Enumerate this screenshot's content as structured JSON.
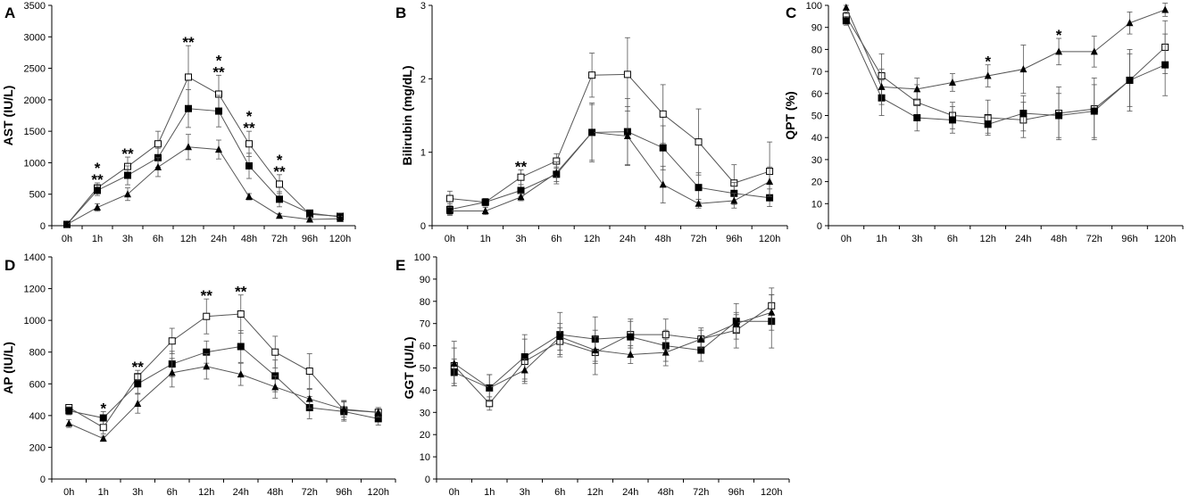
{
  "chart_data": [
    {
      "panel": "A",
      "type": "line",
      "ylabel": "AST (IU/L)",
      "xlabel": "",
      "categories": [
        "0h",
        "1h",
        "3h",
        "6h",
        "12h",
        "24h",
        "48h",
        "72h",
        "96h",
        "120h"
      ],
      "ylim": [
        0,
        3500
      ],
      "yticks": [
        0,
        500,
        1000,
        1500,
        2000,
        2500,
        3000,
        3500
      ],
      "grid": false,
      "series": [
        {
          "marker": "open-square",
          "values": [
            20,
            600,
            940,
            1300,
            2360,
            2090,
            1300,
            660,
            180,
            150
          ],
          "err": [
            0,
            80,
            150,
            200,
            500,
            300,
            200,
            150,
            50,
            50
          ]
        },
        {
          "marker": "filled-square",
          "values": [
            20,
            560,
            800,
            1080,
            1860,
            1820,
            950,
            420,
            200,
            140
          ],
          "err": [
            0,
            80,
            150,
            150,
            300,
            250,
            200,
            120,
            50,
            60
          ]
        },
        {
          "marker": "filled-triangle",
          "values": [
            20,
            290,
            500,
            930,
            1250,
            1210,
            460,
            160,
            100,
            110
          ],
          "err": [
            0,
            60,
            100,
            150,
            200,
            150,
            50,
            30,
            30,
            40
          ]
        }
      ],
      "annotations": [
        {
          "x": "1h",
          "lines": [
            "*",
            "**"
          ]
        },
        {
          "x": "3h",
          "lines": [
            "**"
          ]
        },
        {
          "x": "12h",
          "lines": [
            "**"
          ]
        },
        {
          "x": "24h",
          "lines": [
            "*",
            "**"
          ]
        },
        {
          "x": "48h",
          "lines": [
            "*",
            "**"
          ]
        },
        {
          "x": "72h",
          "lines": [
            "*",
            "**"
          ]
        }
      ]
    },
    {
      "panel": "B",
      "type": "line",
      "ylabel": "Bilirubin (mg/dL)",
      "xlabel": "",
      "categories": [
        "0h",
        "1h",
        "3h",
        "6h",
        "12h",
        "24h",
        "48h",
        "72h",
        "96h",
        "120h"
      ],
      "ylim": [
        0,
        3
      ],
      "yticks": [
        0,
        1,
        2,
        3
      ],
      "grid": false,
      "series": [
        {
          "marker": "open-square",
          "values": [
            0.37,
            0.32,
            0.66,
            0.88,
            2.05,
            2.06,
            1.52,
            1.14,
            0.58,
            0.74
          ],
          "err": [
            0.1,
            0.05,
            0.1,
            0.1,
            0.3,
            0.5,
            0.4,
            0.45,
            0.25,
            0.4
          ]
        },
        {
          "marker": "filled-square",
          "values": [
            0.22,
            0.32,
            0.48,
            0.7,
            1.27,
            1.28,
            1.06,
            0.52,
            0.44,
            0.38
          ],
          "err": [
            0.08,
            0.05,
            0.08,
            0.1,
            0.4,
            0.45,
            0.3,
            0.2,
            0.15,
            0.12
          ]
        },
        {
          "marker": "filled-triangle",
          "values": [
            0.2,
            0.2,
            0.39,
            0.72,
            1.27,
            1.22,
            0.56,
            0.3,
            0.34,
            0.6
          ],
          "err": [
            0.05,
            0.05,
            0.05,
            0.15,
            0.38,
            0.4,
            0.25,
            0.06,
            0.1,
            0.2
          ]
        }
      ],
      "annotations": [
        {
          "x": "3h",
          "lines": [
            "**"
          ]
        }
      ]
    },
    {
      "panel": "C",
      "type": "line",
      "ylabel": "QPT (%)",
      "xlabel": "",
      "categories": [
        "0h",
        "1h",
        "3h",
        "6h",
        "12h",
        "24h",
        "48h",
        "72h",
        "96h",
        "120h"
      ],
      "ylim": [
        0,
        100
      ],
      "yticks": [
        0,
        10,
        20,
        30,
        40,
        50,
        60,
        70,
        80,
        90,
        100
      ],
      "grid": false,
      "series": [
        {
          "marker": "open-square",
          "values": [
            95,
            68,
            56,
            50,
            49,
            48,
            51,
            53,
            66,
            81
          ],
          "err": [
            2,
            10,
            8,
            6,
            8,
            8,
            12,
            14,
            12,
            12
          ]
        },
        {
          "marker": "filled-square",
          "values": [
            93,
            58,
            49,
            48,
            46,
            51,
            50,
            52,
            66,
            73
          ],
          "err": [
            2,
            8,
            6,
            6,
            4,
            8,
            10,
            12,
            14,
            14
          ]
        },
        {
          "marker": "filled-triangle",
          "values": [
            99,
            63,
            62,
            65,
            68,
            71,
            79,
            79,
            92,
            98
          ],
          "err": [
            1,
            8,
            5,
            4,
            5,
            11,
            6,
            7,
            5,
            3
          ]
        }
      ],
      "annotations": [
        {
          "x": "12h",
          "lines": [
            "*"
          ]
        },
        {
          "x": "48h",
          "lines": [
            "*"
          ]
        }
      ]
    },
    {
      "panel": "D",
      "type": "line",
      "ylabel": "AP (IU/L)",
      "xlabel": "",
      "categories": [
        "0h",
        "1h",
        "3h",
        "6h",
        "12h",
        "24h",
        "48h",
        "72h",
        "96h",
        "120h"
      ],
      "ylim": [
        0,
        1400
      ],
      "yticks": [
        0,
        200,
        400,
        600,
        800,
        1000,
        1200,
        1400
      ],
      "grid": false,
      "series": [
        {
          "marker": "open-square",
          "values": [
            450,
            325,
            645,
            870,
            1025,
            1040,
            800,
            680,
            435,
            420
          ],
          "err": [
            20,
            40,
            40,
            80,
            110,
            120,
            100,
            110,
            60,
            30
          ]
        },
        {
          "marker": "filled-square",
          "values": [
            430,
            385,
            600,
            725,
            800,
            835,
            650,
            450,
            425,
            380
          ],
          "err": [
            25,
            40,
            60,
            80,
            70,
            100,
            100,
            70,
            60,
            40
          ]
        },
        {
          "marker": "filled-triangle",
          "values": [
            350,
            255,
            475,
            670,
            710,
            660,
            580,
            505,
            440,
            420
          ],
          "err": [
            25,
            15,
            60,
            90,
            80,
            70,
            70,
            60,
            50,
            30
          ]
        }
      ],
      "annotations": [
        {
          "x": "1h",
          "lines": [
            "*"
          ]
        },
        {
          "x": "3h",
          "lines": [
            "**"
          ]
        },
        {
          "x": "12h",
          "lines": [
            "**"
          ]
        },
        {
          "x": "24h",
          "lines": [
            "**"
          ]
        }
      ]
    },
    {
      "panel": "E",
      "type": "line",
      "ylabel": "GGT (IU/L)",
      "xlabel": "",
      "categories": [
        "0h",
        "1h",
        "3h",
        "6h",
        "12h",
        "24h",
        "48h",
        "72h",
        "96h",
        "120h"
      ],
      "ylim": [
        0,
        100
      ],
      "yticks": [
        0,
        10,
        20,
        30,
        40,
        50,
        60,
        70,
        80,
        90,
        100
      ],
      "grid": false,
      "series": [
        {
          "marker": "open-square",
          "values": [
            51,
            34,
            53,
            62,
            57,
            65,
            65,
            63,
            67,
            78
          ],
          "err": [
            8,
            3,
            10,
            6,
            10,
            6,
            7,
            5,
            8,
            8
          ]
        },
        {
          "marker": "filled-square",
          "values": [
            48,
            41,
            55,
            65,
            63,
            64,
            60,
            58,
            71,
            71
          ],
          "err": [
            6,
            6,
            10,
            10,
            10,
            8,
            7,
            5,
            8,
            12
          ]
        },
        {
          "marker": "filled-triangle",
          "values": [
            52,
            41,
            49,
            64,
            58,
            56,
            57,
            63,
            70,
            75
          ],
          "err": [
            10,
            6,
            5,
            6,
            6,
            4,
            6,
            4,
            4,
            8
          ]
        }
      ],
      "annotations": []
    }
  ]
}
